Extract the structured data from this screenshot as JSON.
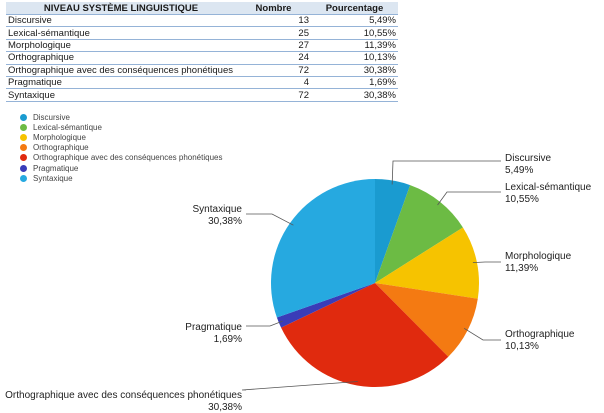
{
  "table": {
    "headers": [
      "NIVEAU SYSTÈME LINGUISTIQUE",
      "Nombre",
      "Pourcentage"
    ],
    "rows": [
      {
        "niveau": "Discursive",
        "nombre": "13",
        "pourcentage": "5,49%"
      },
      {
        "niveau": "Lexical-sémantique",
        "nombre": "25",
        "pourcentage": "10,55%"
      },
      {
        "niveau": "Morphologique",
        "nombre": "27",
        "pourcentage": "11,39%"
      },
      {
        "niveau": "Orthographique",
        "nombre": "24",
        "pourcentage": "10,13%"
      },
      {
        "niveau": "Orthographique avec des conséquences phonétiques",
        "nombre": "72",
        "pourcentage": "30,38%"
      },
      {
        "niveau": "Pragmatique",
        "nombre": "4",
        "pourcentage": "1,69%"
      },
      {
        "niveau": "Syntaxique",
        "nombre": "72",
        "pourcentage": "30,38%"
      }
    ]
  },
  "chart_data": {
    "type": "pie",
    "title": "",
    "legend_position": "top-left",
    "start": "top, clockwise",
    "slices": [
      {
        "name": "Discursive",
        "value": 13,
        "label": "5,49%",
        "color": "#1a9bd0"
      },
      {
        "name": "Lexical-sémantique",
        "value": 25,
        "label": "10,55%",
        "color": "#6cbb44"
      },
      {
        "name": "Morphologique",
        "value": 27,
        "label": "11,39%",
        "color": "#f6c300"
      },
      {
        "name": "Orthographique",
        "value": 24,
        "label": "10,13%",
        "color": "#f47a12"
      },
      {
        "name": "Orthographique avec des conséquences phonétiques",
        "value": 72,
        "label": "30,38%",
        "color": "#e02a0e"
      },
      {
        "name": "Pragmatique",
        "value": 4,
        "label": "1,69%",
        "color": "#3a3cb8"
      },
      {
        "name": "Syntaxique",
        "value": 72,
        "label": "30,38%",
        "color": "#26a9e0"
      }
    ]
  }
}
